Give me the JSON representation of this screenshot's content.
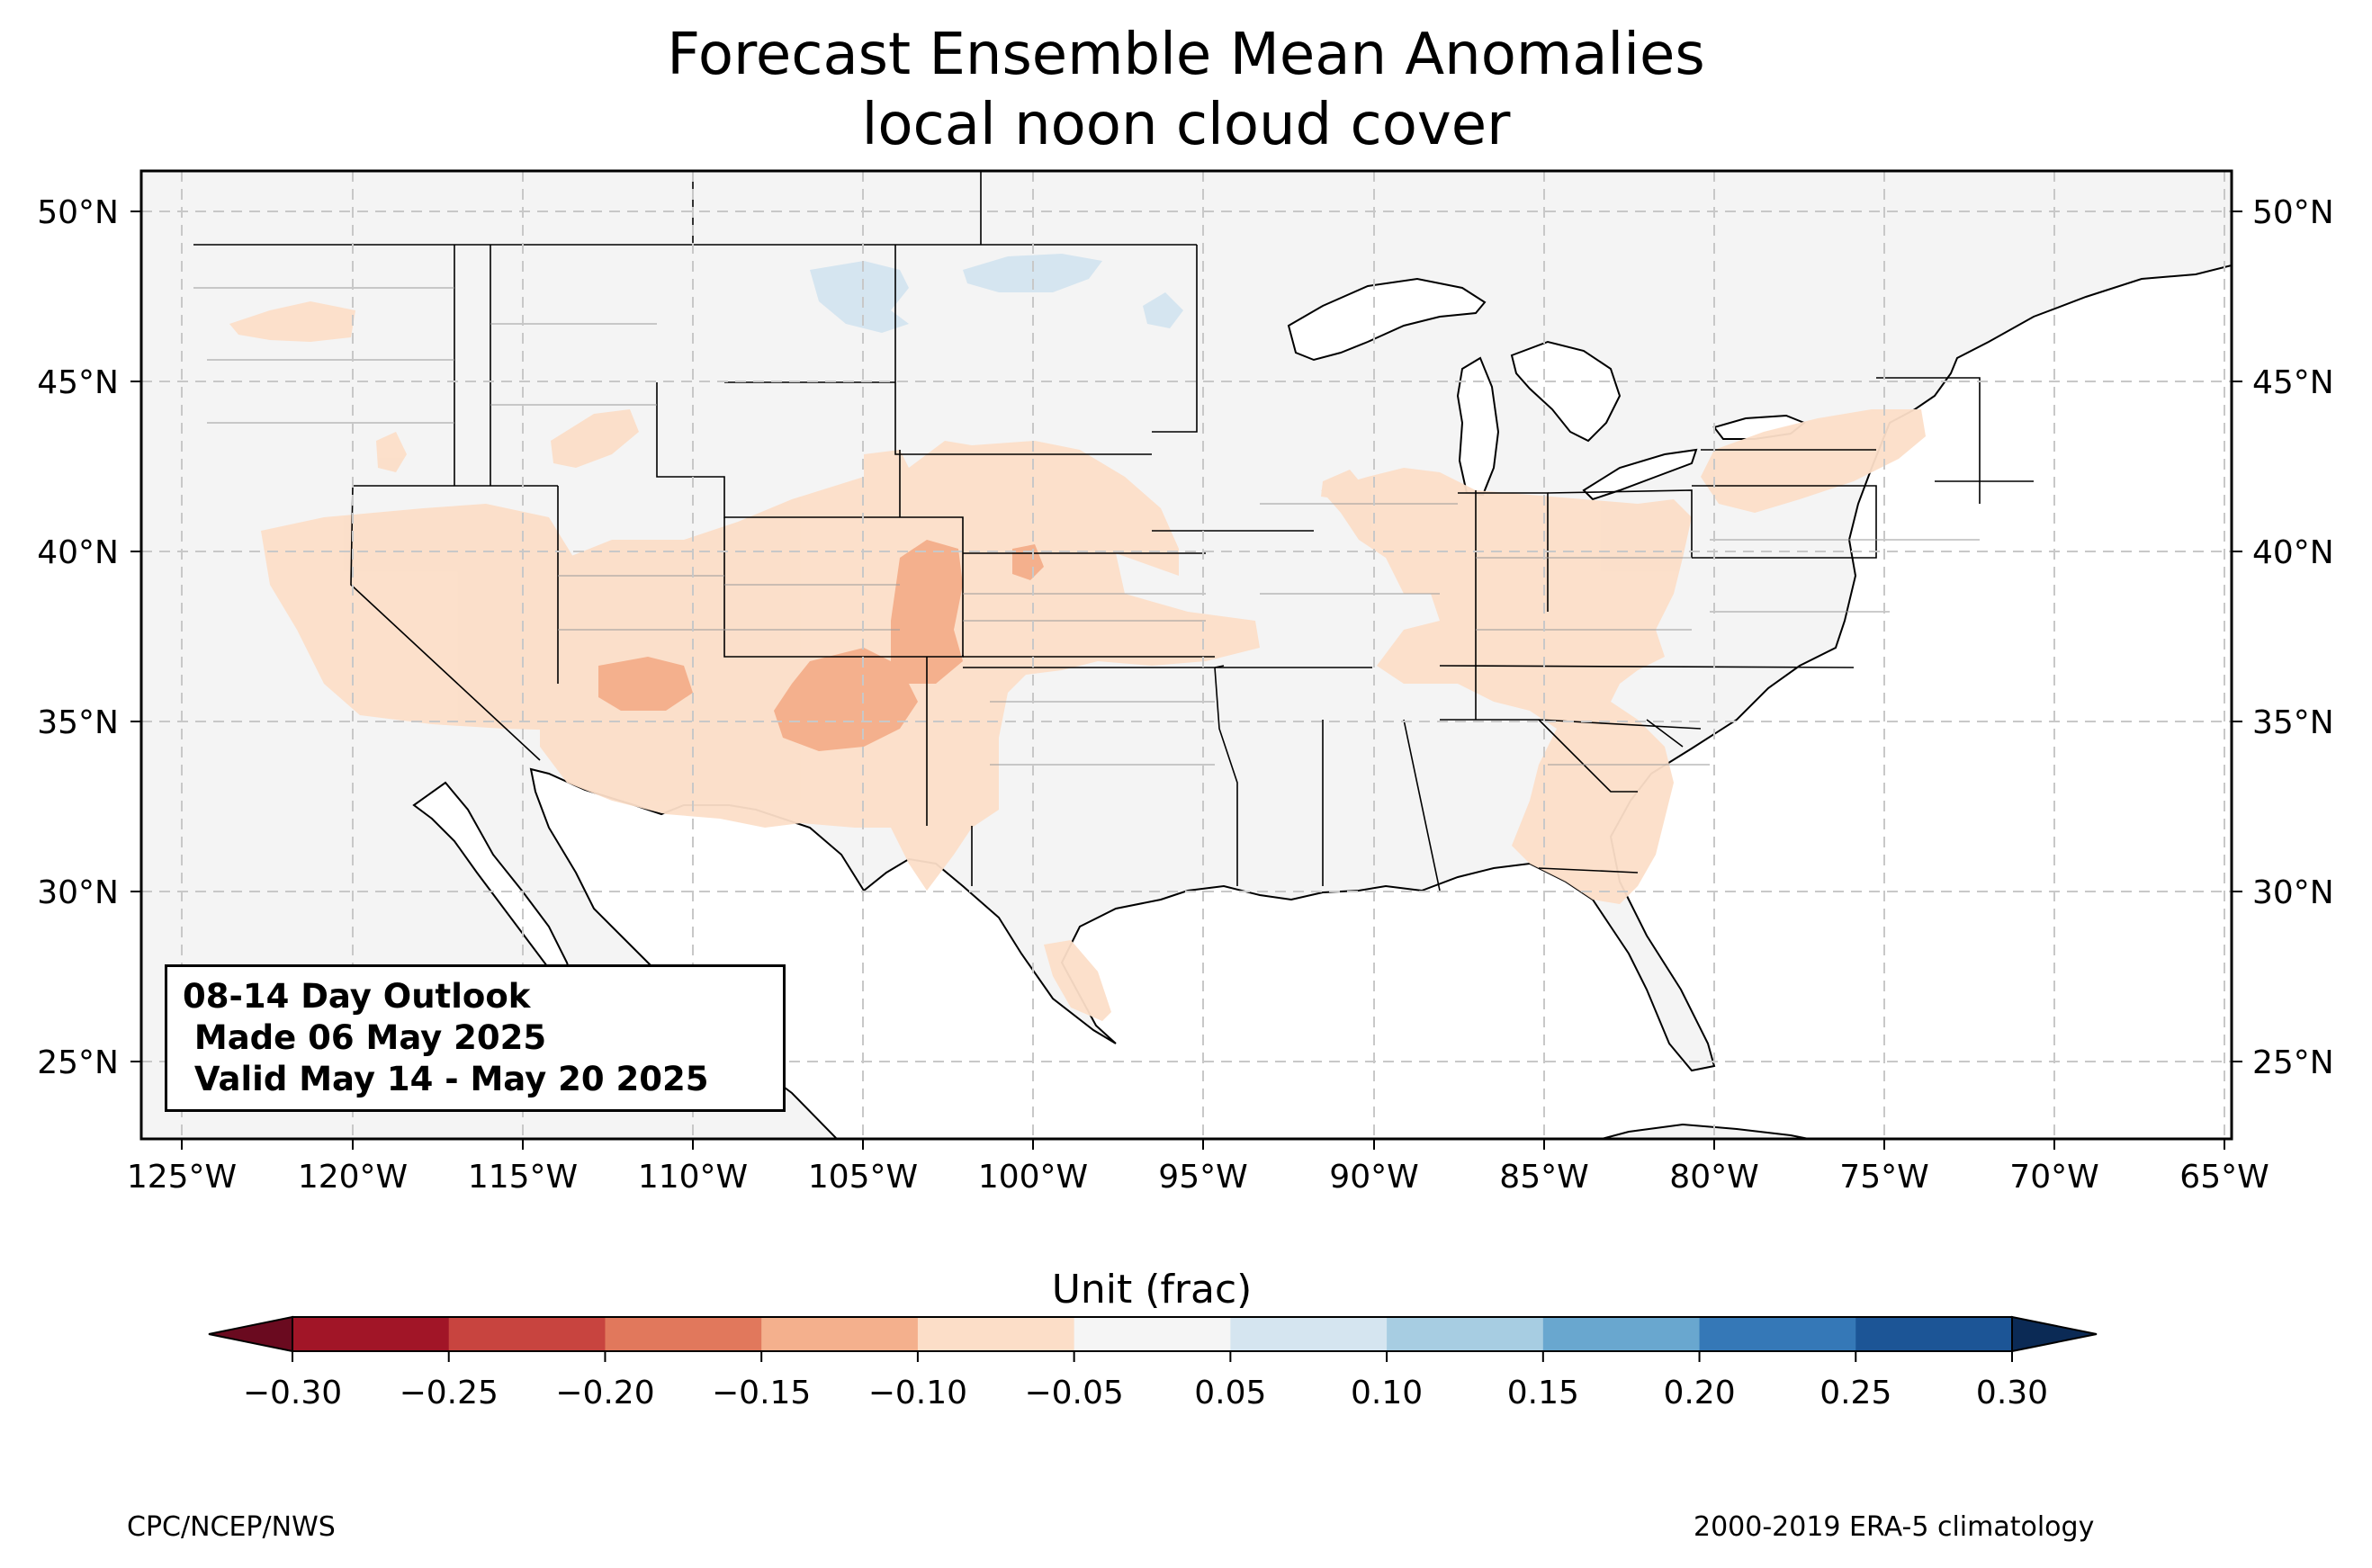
{
  "title": "Forecast Ensemble Mean Anomalies",
  "subtitle": "local noon cloud cover",
  "map": {
    "lon_range": [
      -126.3,
      -64.9
    ],
    "lat_range": [
      22.8,
      51.2
    ],
    "lon_ticks": [
      "125°W",
      "120°W",
      "115°W",
      "110°W",
      "105°W",
      "100°W",
      "95°W",
      "90°W",
      "85°W",
      "80°W",
      "75°W",
      "70°W",
      "65°W"
    ],
    "lat_ticks": [
      "25°N",
      "30°N",
      "35°N",
      "40°N",
      "45°N",
      "50°N"
    ],
    "land_color": "#f4f4f4",
    "water_color": "#ffffff",
    "anomaly_regions": [
      {
        "name": "northern-rockies",
        "category": "-0.10 to -0.05"
      },
      {
        "name": "pacific-northwest",
        "category": "-0.10 to -0.05"
      },
      {
        "name": "california-great-basin",
        "category": "-0.10 to -0.05"
      },
      {
        "name": "arizona-new-mexico",
        "category": "-0.10 to -0.05"
      },
      {
        "name": "four-corners-core",
        "category": "-0.15 to -0.10"
      },
      {
        "name": "colorado-core",
        "category": "-0.15 to -0.10"
      },
      {
        "name": "southern-plains",
        "category": "-0.10 to -0.05"
      },
      {
        "name": "south-texas",
        "category": "-0.10 to -0.05"
      },
      {
        "name": "ohio-valley",
        "category": "-0.10 to -0.05"
      },
      {
        "name": "southeast",
        "category": "-0.10 to -0.05"
      },
      {
        "name": "pennsylvania-new-york",
        "category": "-0.10 to -0.05"
      },
      {
        "name": "montana-north-dakota",
        "category": "0.05 to 0.10"
      }
    ]
  },
  "outlook_box": {
    "line1": "08-14 Day Outlook",
    "line2": " Made 06 May 2025",
    "line3": " Valid May 14 - May 20 2025"
  },
  "colorbar": {
    "title": "Unit (frac)",
    "bounds": [
      -0.3,
      -0.25,
      -0.2,
      -0.15,
      -0.1,
      -0.05,
      0.05,
      0.1,
      0.15,
      0.2,
      0.25,
      0.3
    ],
    "tick_labels": [
      "−0.30",
      "−0.25",
      "−0.20",
      "−0.15",
      "−0.10",
      "−0.05",
      "0.05",
      "0.10",
      "0.15",
      "0.20",
      "0.25",
      "0.30"
    ],
    "colors": [
      "#a11527",
      "#c8443f",
      "#e1785c",
      "#f4b08d",
      "#fcdec8",
      "#f5f5f5",
      "#d5e5f0",
      "#a7cde2",
      "#69a7cf",
      "#3578b7",
      "#1c5596"
    ],
    "extend_low_color": "#6a0a1f",
    "extend_high_color": "#0b2a55"
  },
  "footer": {
    "left": "CPC/NCEP/NWS",
    "right": "2000-2019 ERA-5 climatology"
  }
}
